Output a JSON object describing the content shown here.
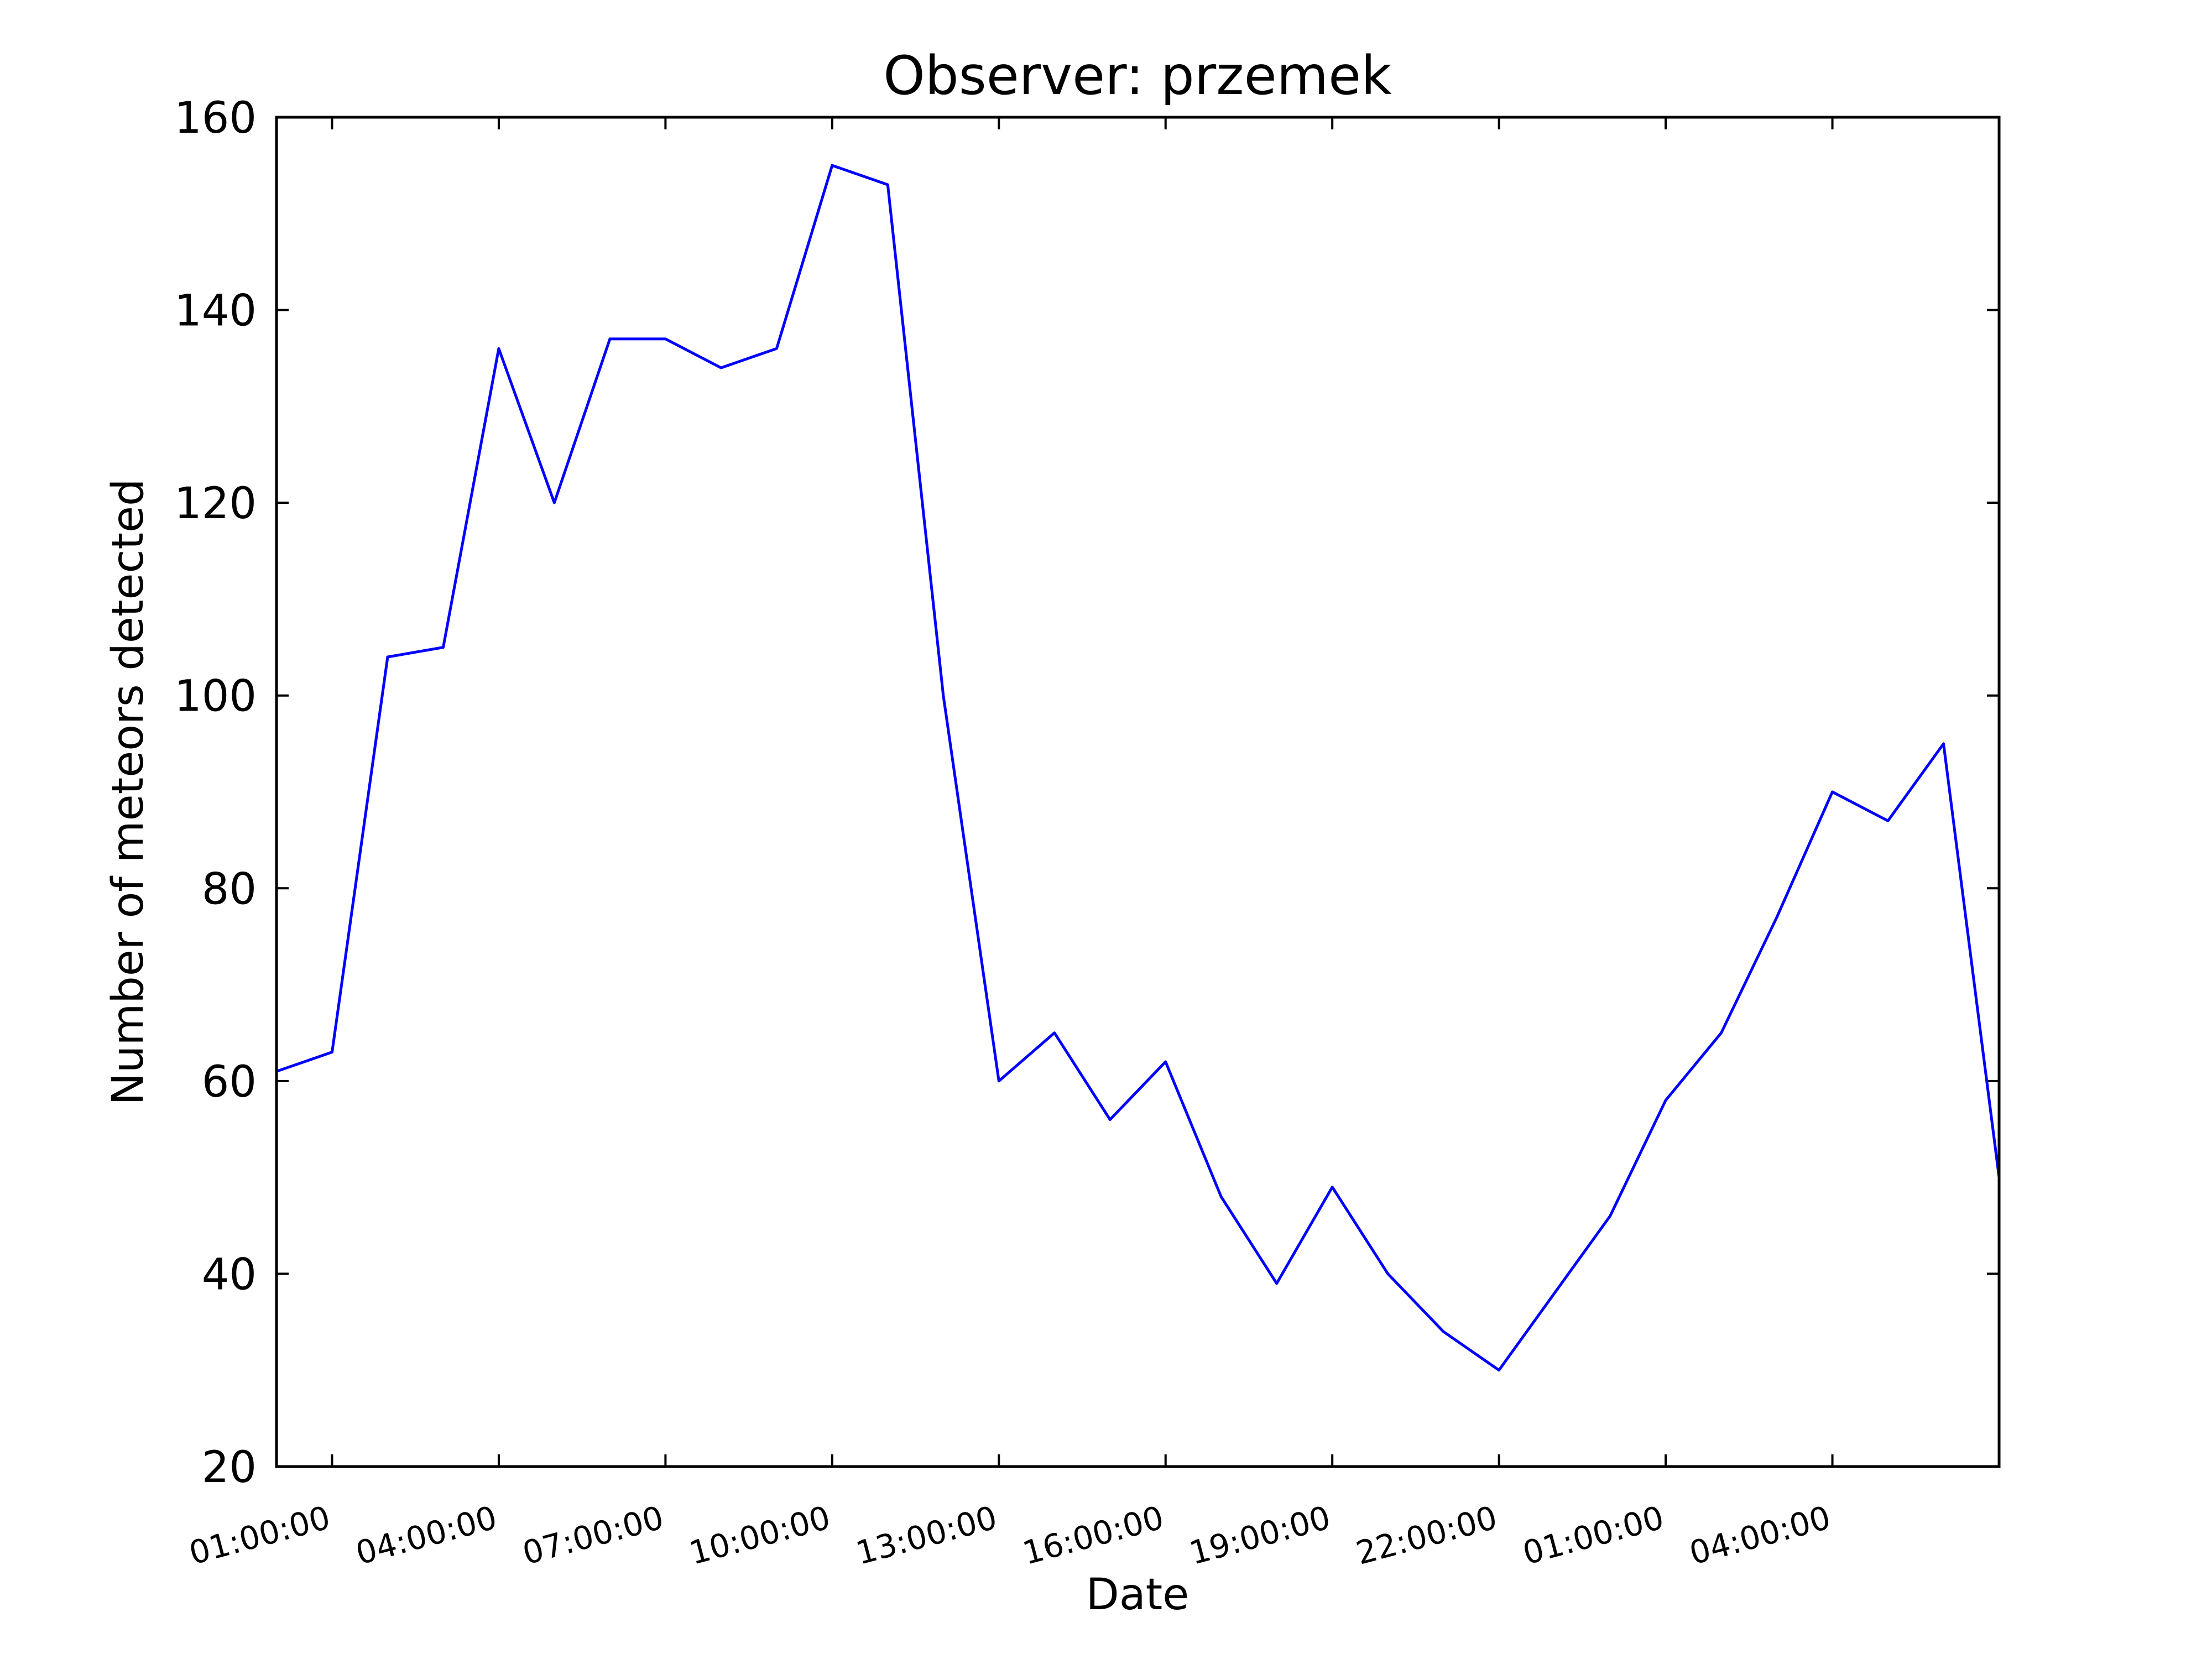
{
  "chart_data": {
    "type": "line",
    "title": "Observer: przemek",
    "xlabel": "Date",
    "ylabel": "Number of meteors detected",
    "ylim": [
      20,
      160
    ],
    "yticks": [
      "20",
      "40",
      "60",
      "80",
      "100",
      "120",
      "140",
      "160"
    ],
    "x_tick_labels": [
      "01:00:00",
      "04:00:00",
      "07:00:00",
      "10:00:00",
      "13:00:00",
      "16:00:00",
      "19:00:00",
      "22:00:00",
      "01:00:00",
      "04:00:00"
    ],
    "x_start_label": "00:00:00",
    "series": [
      {
        "color": "#0000ff",
        "times": [
          "00:00:00",
          "01:00:00",
          "02:00:00",
          "03:00:00",
          "04:00:00",
          "05:00:00",
          "06:00:00",
          "07:00:00",
          "08:00:00",
          "09:00:00",
          "10:00:00",
          "11:00:00",
          "12:00:00",
          "13:00:00",
          "14:00:00",
          "15:00:00",
          "16:00:00",
          "17:00:00",
          "18:00:00",
          "19:00:00",
          "20:00:00",
          "21:00:00",
          "22:00:00",
          "23:00:00",
          "00:00:00",
          "01:00:00",
          "02:00:00",
          "03:00:00",
          "04:00:00",
          "05:00:00",
          "06:00:00",
          "07:00:00"
        ],
        "values": [
          61,
          63,
          104,
          105,
          136,
          120,
          137,
          137,
          134,
          136,
          155,
          153,
          100,
          60,
          65,
          56,
          62,
          48,
          39,
          49,
          40,
          34,
          30,
          38,
          46,
          58,
          65,
          77,
          90,
          87,
          95,
          50
        ]
      }
    ],
    "grid": false,
    "legend": false
  }
}
